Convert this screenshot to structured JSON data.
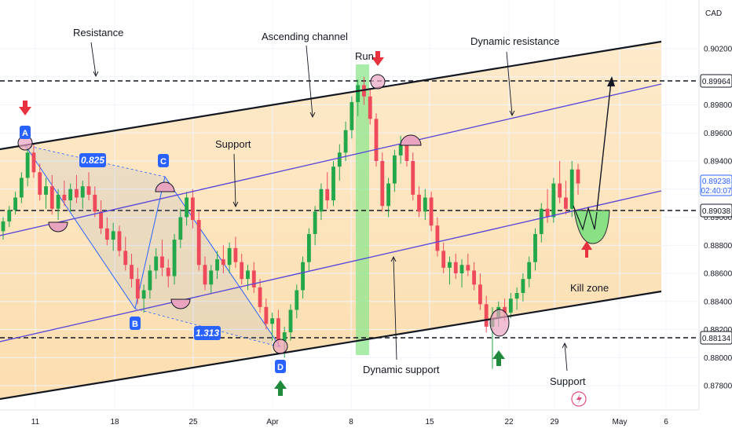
{
  "chart_data": {
    "type": "candlestick",
    "currency": "CAD",
    "symbol_footer": "",
    "y_ticks": [
      "0.87800",
      "0.88000",
      "0.88200",
      "0.88400",
      "0.88600",
      "0.88800",
      "0.89000",
      "0.89200",
      "0.89400",
      "0.89600",
      "0.89800",
      "0.90000",
      "0.90200"
    ],
    "ylim": [
      0.8768,
      0.904
    ],
    "x_ticks": [
      "11",
      "18",
      "25",
      "Apr",
      "8",
      "15",
      "22",
      "29",
      "May",
      "6"
    ],
    "price_labels": {
      "top": "0.89964",
      "current": "0.89238",
      "countdown": "02:40:07",
      "middle": "0.89038",
      "bottom": "0.88134"
    },
    "levels": {
      "top": 0.89964,
      "middle": 0.89038,
      "bottom": 0.88134,
      "current": 0.89238
    },
    "annotations": {
      "resistance": "Resistance",
      "ascending_channel": "Ascending channel",
      "run": "Run",
      "dynamic_resistance": "Dynamic resistance",
      "support_mid": "Support",
      "dynamic_support": "Dynamic support",
      "support_bottom": "Support",
      "kill_zone": "Kill zone"
    },
    "points": {
      "A": "A",
      "B": "B",
      "C": "C",
      "D": "D"
    },
    "ratios": {
      "ac": "0.825",
      "bd": "1.313"
    },
    "candles": [
      [
        0.889,
        0.89,
        0.8884,
        0.8897
      ],
      [
        0.8897,
        0.8908,
        0.8893,
        0.8905
      ],
      [
        0.8905,
        0.8918,
        0.8902,
        0.8914
      ],
      [
        0.8914,
        0.8932,
        0.891,
        0.8928
      ],
      [
        0.8928,
        0.8949,
        0.8922,
        0.8946
      ],
      [
        0.8946,
        0.8952,
        0.8928,
        0.8932
      ],
      [
        0.8932,
        0.8938,
        0.8912,
        0.8916
      ],
      [
        0.8916,
        0.8928,
        0.8906,
        0.8922
      ],
      [
        0.8922,
        0.893,
        0.8902,
        0.8906
      ],
      [
        0.8906,
        0.892,
        0.8898,
        0.8916
      ],
      [
        0.8916,
        0.8926,
        0.8908,
        0.8912
      ],
      [
        0.8912,
        0.8924,
        0.8904,
        0.892
      ],
      [
        0.892,
        0.893,
        0.891,
        0.8914
      ],
      [
        0.8914,
        0.8926,
        0.8906,
        0.8922
      ],
      [
        0.8922,
        0.8932,
        0.8912,
        0.8916
      ],
      [
        0.8916,
        0.8922,
        0.89,
        0.8904
      ],
      [
        0.8904,
        0.8912,
        0.8888,
        0.8892
      ],
      [
        0.8892,
        0.89,
        0.888,
        0.8884
      ],
      [
        0.8884,
        0.8896,
        0.8876,
        0.889
      ],
      [
        0.889,
        0.8894,
        0.8872,
        0.8876
      ],
      [
        0.8876,
        0.8886,
        0.8862,
        0.8866
      ],
      [
        0.8866,
        0.8874,
        0.885,
        0.8856
      ],
      [
        0.8856,
        0.8864,
        0.8838,
        0.8842
      ],
      [
        0.8842,
        0.8852,
        0.8832,
        0.8848
      ],
      [
        0.8848,
        0.8866,
        0.8842,
        0.8862
      ],
      [
        0.8862,
        0.8878,
        0.8856,
        0.8872
      ],
      [
        0.8872,
        0.8884,
        0.8858,
        0.8864
      ],
      [
        0.8864,
        0.887,
        0.885,
        0.8858
      ],
      [
        0.8858,
        0.8888,
        0.8852,
        0.8884
      ],
      [
        0.8884,
        0.8906,
        0.8878,
        0.89
      ],
      [
        0.89,
        0.8918,
        0.8894,
        0.8914
      ],
      [
        0.8914,
        0.892,
        0.8892,
        0.8898
      ],
      [
        0.8898,
        0.8904,
        0.8862,
        0.8866
      ],
      [
        0.8866,
        0.8872,
        0.8848,
        0.8852
      ],
      [
        0.8852,
        0.8866,
        0.8846,
        0.8862
      ],
      [
        0.8862,
        0.8876,
        0.8856,
        0.887
      ],
      [
        0.887,
        0.888,
        0.886,
        0.8866
      ],
      [
        0.8866,
        0.8882,
        0.886,
        0.8878
      ],
      [
        0.8878,
        0.8886,
        0.8864,
        0.8868
      ],
      [
        0.8868,
        0.8874,
        0.8852,
        0.8856
      ],
      [
        0.8856,
        0.8866,
        0.8848,
        0.8862
      ],
      [
        0.8862,
        0.8868,
        0.8846,
        0.885
      ],
      [
        0.885,
        0.8856,
        0.8832,
        0.8836
      ],
      [
        0.8836,
        0.8842,
        0.882,
        0.8824
      ],
      [
        0.8824,
        0.8832,
        0.8812,
        0.8828
      ],
      [
        0.8828,
        0.8834,
        0.8808,
        0.8812
      ],
      [
        0.8812,
        0.8822,
        0.88,
        0.8818
      ],
      [
        0.8818,
        0.8838,
        0.8812,
        0.8834
      ],
      [
        0.8834,
        0.8852,
        0.8828,
        0.8848
      ],
      [
        0.8848,
        0.8872,
        0.8842,
        0.8868
      ],
      [
        0.8868,
        0.8892,
        0.8862,
        0.8888
      ],
      [
        0.8888,
        0.8908,
        0.888,
        0.8904
      ],
      [
        0.8904,
        0.8924,
        0.8898,
        0.892
      ],
      [
        0.892,
        0.8932,
        0.8906,
        0.8912
      ],
      [
        0.8912,
        0.894,
        0.8908,
        0.8936
      ],
      [
        0.8936,
        0.8952,
        0.8926,
        0.8946
      ],
      [
        0.8946,
        0.8968,
        0.894,
        0.8962
      ],
      [
        0.8962,
        0.8986,
        0.8956,
        0.8982
      ],
      [
        0.8982,
        0.8998,
        0.8972,
        0.8994
      ],
      [
        0.8994,
        0.9,
        0.898,
        0.8986
      ],
      [
        0.8986,
        0.8992,
        0.8966,
        0.897
      ],
      [
        0.897,
        0.8974,
        0.8936,
        0.894
      ],
      [
        0.894,
        0.8946,
        0.8904,
        0.8908
      ],
      [
        0.8908,
        0.8928,
        0.89,
        0.8924
      ],
      [
        0.8924,
        0.8948,
        0.8918,
        0.8944
      ],
      [
        0.8944,
        0.8958,
        0.8938,
        0.8952
      ],
      [
        0.8952,
        0.8956,
        0.8936,
        0.894
      ],
      [
        0.894,
        0.8946,
        0.8912,
        0.8916
      ],
      [
        0.8916,
        0.8922,
        0.89,
        0.8904
      ],
      [
        0.8904,
        0.892,
        0.8898,
        0.8914
      ],
      [
        0.8914,
        0.8918,
        0.889,
        0.8894
      ],
      [
        0.8894,
        0.89,
        0.8872,
        0.8876
      ],
      [
        0.8876,
        0.8882,
        0.886,
        0.8864
      ],
      [
        0.8864,
        0.8872,
        0.8852,
        0.8868
      ],
      [
        0.8868,
        0.8874,
        0.8856,
        0.886
      ],
      [
        0.886,
        0.887,
        0.885,
        0.8866
      ],
      [
        0.8866,
        0.8874,
        0.8858,
        0.8862
      ],
      [
        0.8862,
        0.8868,
        0.8848,
        0.8852
      ],
      [
        0.8852,
        0.886,
        0.8834,
        0.8838
      ],
      [
        0.8838,
        0.8844,
        0.8818,
        0.8822
      ],
      [
        0.8822,
        0.8836,
        0.8792,
        0.8828
      ],
      [
        0.8828,
        0.884,
        0.8822,
        0.8836
      ],
      [
        0.8836,
        0.8842,
        0.8826,
        0.8832
      ],
      [
        0.8832,
        0.8846,
        0.8828,
        0.8842
      ],
      [
        0.8842,
        0.885,
        0.8834,
        0.8846
      ],
      [
        0.8846,
        0.886,
        0.884,
        0.8856
      ],
      [
        0.8856,
        0.8872,
        0.885,
        0.8868
      ],
      [
        0.8868,
        0.8892,
        0.8862,
        0.8888
      ],
      [
        0.8888,
        0.891,
        0.8882,
        0.8906
      ],
      [
        0.8906,
        0.892,
        0.8896,
        0.89
      ],
      [
        0.89,
        0.8928,
        0.8896,
        0.8924
      ],
      [
        0.8924,
        0.894,
        0.891,
        0.8914
      ],
      [
        0.8914,
        0.8926,
        0.8902,
        0.8906
      ],
      [
        0.8906,
        0.894,
        0.89,
        0.8934
      ],
      [
        0.8934,
        0.8938,
        0.8916,
        0.8924
      ]
    ]
  },
  "ui": {
    "logo": "tradingview-logo"
  }
}
